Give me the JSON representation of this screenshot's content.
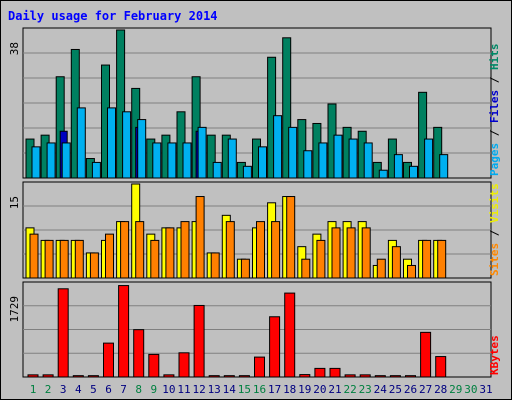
{
  "title": "Daily usage for February 2014",
  "chart_data": [
    {
      "type": "bar",
      "panel": "top",
      "ymax_label": "38",
      "ylim": [
        0,
        38
      ],
      "right_label": [
        {
          "text": "Pages",
          "color": "#00aaee"
        },
        {
          "text": " / ",
          "color": "#000000"
        },
        {
          "text": "Files",
          "color": "#0000cc"
        },
        {
          "text": " / ",
          "color": "#000000"
        },
        {
          "text": "Hits",
          "color": "#008866"
        }
      ],
      "categories": [
        "1",
        "2",
        "3",
        "4",
        "5",
        "6",
        "7",
        "8",
        "9",
        "10",
        "11",
        "12",
        "13",
        "14",
        "15",
        "16",
        "17",
        "18",
        "19",
        "20",
        "21",
        "22",
        "23",
        "24",
        "25",
        "26",
        "27",
        "28",
        "29",
        "30",
        "31"
      ],
      "series": [
        {
          "name": "Hits",
          "color": "#008060",
          "values": [
            10,
            11,
            26,
            33,
            5,
            29,
            38,
            23,
            10,
            11,
            17,
            26,
            11,
            11,
            4,
            10,
            31,
            36,
            15,
            14,
            19,
            13,
            12,
            4,
            10,
            4,
            22,
            13,
            0,
            0,
            0
          ]
        },
        {
          "name": "Files",
          "color": "#0000c0",
          "values": [
            0,
            0,
            12,
            0,
            0,
            0,
            0,
            13,
            0,
            0,
            0,
            12,
            0,
            0,
            0,
            0,
            0,
            0,
            0,
            0,
            0,
            0,
            0,
            0,
            0,
            0,
            0,
            0,
            0,
            0,
            0
          ]
        },
        {
          "name": "Pages",
          "color": "#00b0f0",
          "values": [
            8,
            9,
            9,
            18,
            4,
            18,
            17,
            15,
            9,
            9,
            9,
            13,
            4,
            10,
            3,
            8,
            16,
            13,
            7,
            9,
            11,
            10,
            9,
            2,
            6,
            3,
            10,
            6,
            0,
            0,
            0
          ]
        }
      ]
    },
    {
      "type": "bar",
      "panel": "middle",
      "ymax_label": "15",
      "ylim": [
        0,
        15
      ],
      "right_label": [
        {
          "text": "Sites",
          "color": "#ff8800"
        },
        {
          "text": " / ",
          "color": "#000000"
        },
        {
          "text": "Visits",
          "color": "#eeee00"
        }
      ],
      "categories": [
        "1",
        "2",
        "3",
        "4",
        "5",
        "6",
        "7",
        "8",
        "9",
        "10",
        "11",
        "12",
        "13",
        "14",
        "15",
        "16",
        "17",
        "18",
        "19",
        "20",
        "21",
        "22",
        "23",
        "24",
        "25",
        "26",
        "27",
        "28",
        "29",
        "30",
        "31"
      ],
      "series": [
        {
          "name": "Visits",
          "color": "#ffff00",
          "values": [
            8,
            6,
            6,
            6,
            4,
            6,
            9,
            15,
            7,
            8,
            8,
            9,
            4,
            10,
            3,
            8,
            12,
            13,
            5,
            7,
            9,
            9,
            9,
            2,
            6,
            3,
            6,
            6,
            0,
            0,
            0
          ]
        },
        {
          "name": "Sites",
          "color": "#ff8000",
          "values": [
            7,
            6,
            6,
            6,
            4,
            7,
            9,
            9,
            6,
            8,
            9,
            13,
            4,
            9,
            3,
            9,
            9,
            13,
            3,
            6,
            8,
            8,
            8,
            3,
            5,
            2,
            6,
            6,
            0,
            0,
            0
          ]
        }
      ]
    },
    {
      "type": "bar",
      "panel": "bottom",
      "ymax_label": "1729",
      "ylim": [
        0,
        1729
      ],
      "right_label": [
        {
          "text": "KBytes",
          "color": "#ff0000"
        }
      ],
      "categories": [
        "1",
        "2",
        "3",
        "4",
        "5",
        "6",
        "7",
        "8",
        "9",
        "10",
        "11",
        "12",
        "13",
        "14",
        "15",
        "16",
        "17",
        "18",
        "19",
        "20",
        "21",
        "22",
        "23",
        "24",
        "25",
        "26",
        "27",
        "28",
        "29",
        "30",
        "31"
      ],
      "series": [
        {
          "name": "KBytes",
          "color": "#ff0000",
          "values": [
            40,
            40,
            1640,
            25,
            25,
            630,
            1700,
            880,
            420,
            40,
            450,
            1330,
            25,
            25,
            25,
            370,
            1120,
            1560,
            45,
            160,
            160,
            40,
            40,
            25,
            25,
            25,
            830,
            380,
            0,
            0,
            0
          ]
        }
      ]
    }
  ],
  "x_labels": [
    {
      "text": "1",
      "color": "#008040"
    },
    {
      "text": "2",
      "color": "#008040"
    },
    {
      "text": "3",
      "color": "#000080"
    },
    {
      "text": "4",
      "color": "#000080"
    },
    {
      "text": "5",
      "color": "#000080"
    },
    {
      "text": "6",
      "color": "#000080"
    },
    {
      "text": "7",
      "color": "#000080"
    },
    {
      "text": "8",
      "color": "#008040"
    },
    {
      "text": "9",
      "color": "#008040"
    },
    {
      "text": "10",
      "color": "#000080"
    },
    {
      "text": "11",
      "color": "#000080"
    },
    {
      "text": "12",
      "color": "#000080"
    },
    {
      "text": "13",
      "color": "#000080"
    },
    {
      "text": "14",
      "color": "#000080"
    },
    {
      "text": "15",
      "color": "#008040"
    },
    {
      "text": "16",
      "color": "#008040"
    },
    {
      "text": "17",
      "color": "#000080"
    },
    {
      "text": "18",
      "color": "#000080"
    },
    {
      "text": "19",
      "color": "#000080"
    },
    {
      "text": "20",
      "color": "#000080"
    },
    {
      "text": "21",
      "color": "#000080"
    },
    {
      "text": "22",
      "color": "#008040"
    },
    {
      "text": "23",
      "color": "#008040"
    },
    {
      "text": "24",
      "color": "#000080"
    },
    {
      "text": "25",
      "color": "#000080"
    },
    {
      "text": "26",
      "color": "#000080"
    },
    {
      "text": "27",
      "color": "#000080"
    },
    {
      "text": "28",
      "color": "#000080"
    },
    {
      "text": "29",
      "color": "#008040"
    },
    {
      "text": "30",
      "color": "#008040"
    },
    {
      "text": "31",
      "color": "#000080"
    }
  ],
  "colors": {
    "background": "#c0c0c0",
    "title": "#0000ff",
    "grid": "#808080"
  }
}
